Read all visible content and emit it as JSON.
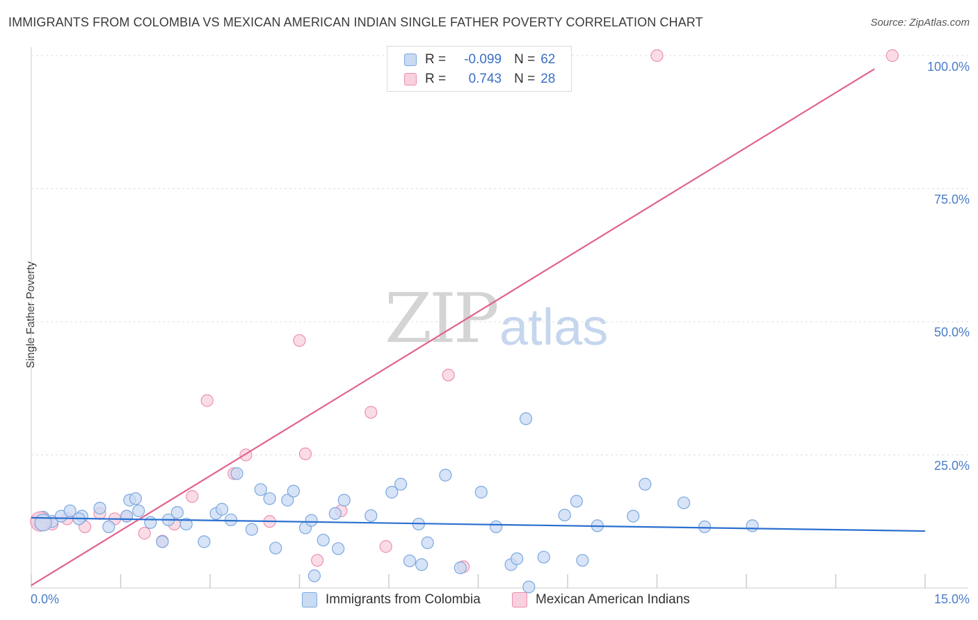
{
  "chart_data": {
    "type": "scatter",
    "title": "IMMIGRANTS FROM COLOMBIA VS MEXICAN AMERICAN INDIAN SINGLE FATHER POVERTY CORRELATION CHART",
    "source": "Source: ZipAtlas.com",
    "xlabel": "",
    "ylabel": "Single Father Poverty",
    "xlim": [
      0,
      15
    ],
    "ylim": [
      0,
      100
    ],
    "x_tick_labels": [
      "0.0%",
      "15.0%"
    ],
    "y_tick_values": [
      25,
      50,
      75,
      100
    ],
    "y_tick_labels": [
      "25.0%",
      "50.0%",
      "75.0%",
      "100.0%"
    ],
    "watermark": {
      "zip": "ZIP",
      "atlas": "atlas"
    },
    "legend": {
      "r_label": "R =",
      "n_label": "N =",
      "rows": [
        {
          "r": "-0.099",
          "n": "62"
        },
        {
          "r": "0.743",
          "n": "28"
        }
      ]
    },
    "series": [
      {
        "name": "Immigrants from Colombia",
        "color": "#7aa8e0",
        "fill": "#c9daf3",
        "trend": {
          "x": [
            0,
            15
          ],
          "y": [
            13.2,
            10.7
          ]
        },
        "points": [
          [
            0.15,
            12.0
          ],
          [
            0.2,
            13.3
          ],
          [
            0.35,
            12.5
          ],
          [
            0.5,
            13.5
          ],
          [
            0.65,
            14.5
          ],
          [
            0.85,
            13.5
          ],
          [
            0.8,
            13.0
          ],
          [
            1.15,
            15.0
          ],
          [
            1.3,
            11.5
          ],
          [
            1.6,
            13.5
          ],
          [
            1.65,
            16.5
          ],
          [
            1.8,
            14.5
          ],
          [
            1.75,
            16.8
          ],
          [
            2.0,
            12.3
          ],
          [
            2.2,
            8.7
          ],
          [
            2.3,
            12.8
          ],
          [
            2.45,
            14.2
          ],
          [
            2.6,
            12.0
          ],
          [
            2.9,
            8.7
          ],
          [
            3.1,
            14.0
          ],
          [
            3.2,
            14.8
          ],
          [
            3.35,
            12.8
          ],
          [
            3.45,
            21.5
          ],
          [
            3.7,
            11.0
          ],
          [
            3.85,
            18.5
          ],
          [
            4.0,
            16.8
          ],
          [
            4.1,
            7.5
          ],
          [
            4.3,
            16.5
          ],
          [
            4.4,
            18.2
          ],
          [
            4.6,
            11.3
          ],
          [
            4.7,
            12.7
          ],
          [
            4.75,
            2.3
          ],
          [
            4.9,
            9.0
          ],
          [
            5.1,
            14.0
          ],
          [
            5.15,
            7.4
          ],
          [
            5.25,
            16.5
          ],
          [
            5.7,
            13.6
          ],
          [
            6.05,
            18.0
          ],
          [
            6.2,
            19.5
          ],
          [
            6.35,
            5.1
          ],
          [
            6.5,
            12.0
          ],
          [
            6.55,
            4.4
          ],
          [
            6.65,
            8.5
          ],
          [
            6.95,
            21.2
          ],
          [
            7.2,
            3.8
          ],
          [
            7.55,
            18.0
          ],
          [
            7.8,
            11.5
          ],
          [
            8.05,
            4.4
          ],
          [
            8.15,
            5.5
          ],
          [
            8.3,
            31.8
          ],
          [
            8.35,
            0.2
          ],
          [
            8.6,
            5.8
          ],
          [
            8.95,
            13.7
          ],
          [
            9.15,
            16.3
          ],
          [
            9.25,
            5.2
          ],
          [
            9.5,
            11.7
          ],
          [
            10.1,
            13.5
          ],
          [
            10.3,
            19.5
          ],
          [
            10.95,
            16.0
          ],
          [
            11.3,
            11.5
          ],
          [
            12.1,
            11.7
          ]
        ]
      },
      {
        "name": "Mexican American Indians",
        "color": "#ec8fb0",
        "fill": "#f8d0de",
        "trend": {
          "x": [
            0,
            14.15
          ],
          "y": [
            0.5,
            97.5
          ]
        },
        "points": [
          [
            0.1,
            12.5
          ],
          [
            0.35,
            12.0
          ],
          [
            0.6,
            13.0
          ],
          [
            0.9,
            11.5
          ],
          [
            1.15,
            14.0
          ],
          [
            1.4,
            13.0
          ],
          [
            1.6,
            13.5
          ],
          [
            1.9,
            10.3
          ],
          [
            2.2,
            8.8
          ],
          [
            2.4,
            12.0
          ],
          [
            2.7,
            17.2
          ],
          [
            2.95,
            35.2
          ],
          [
            3.4,
            21.5
          ],
          [
            3.6,
            25.0
          ],
          [
            4.0,
            12.5
          ],
          [
            4.5,
            46.5
          ],
          [
            4.6,
            25.2
          ],
          [
            4.8,
            5.2
          ],
          [
            5.2,
            14.5
          ],
          [
            5.7,
            33.0
          ],
          [
            5.95,
            7.8
          ],
          [
            7.0,
            40.0
          ],
          [
            7.25,
            4.0
          ],
          [
            10.5,
            100.0
          ],
          [
            14.45,
            100.0
          ]
        ]
      }
    ]
  }
}
